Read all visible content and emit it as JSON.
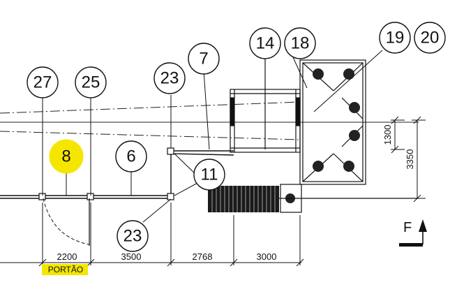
{
  "labels": {
    "l27": "27",
    "l25": "25",
    "l23a": "23",
    "l7": "7",
    "l14": "14",
    "l18": "18",
    "l19": "19",
    "l20": "20",
    "l8": "8",
    "l6": "6",
    "l11": "11",
    "l23b": "23"
  },
  "dimensions": {
    "d2200": "2200",
    "d3500": "3500",
    "d2768": "2768",
    "d3000": "3000",
    "d1300": "1300",
    "d3350": "3350"
  },
  "gate_label": "PORTÃO",
  "north": "F",
  "highlight_color": "#f5e600"
}
